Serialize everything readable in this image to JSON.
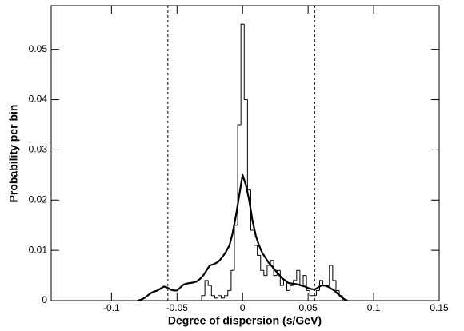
{
  "chart_data": {
    "type": "line",
    "xlabel": "Degree of dispersion (s/GeV)",
    "ylabel": "Probability per bin",
    "x": [
      -0.08,
      -0.0775,
      -0.075,
      -0.0725,
      -0.07,
      -0.0675,
      -0.065,
      -0.0625,
      -0.06,
      -0.0575,
      -0.055,
      -0.0525,
      -0.05,
      -0.0475,
      -0.045,
      -0.0425,
      -0.04,
      -0.0375,
      -0.035,
      -0.0325,
      -0.03,
      -0.0275,
      -0.025,
      -0.0225,
      -0.02,
      -0.0175,
      -0.015,
      -0.0125,
      -0.01,
      -0.0075,
      -0.005,
      -0.0025,
      0,
      0.0025,
      0.005,
      0.0075,
      0.01,
      0.0125,
      0.015,
      0.0175,
      0.02,
      0.0225,
      0.025,
      0.0275,
      0.03,
      0.0325,
      0.035,
      0.0375,
      0.04,
      0.0425,
      0.045,
      0.0475,
      0.05,
      0.0525,
      0.055,
      0.0575,
      0.06,
      0.0625,
      0.065,
      0.0675,
      0.07,
      0.0725,
      0.075,
      0.0775,
      0.08
    ],
    "series": [
      {
        "color": "#000000",
        "width": 1,
        "step": true,
        "values": [
          0,
          0,
          0,
          0,
          0,
          0,
          0,
          0,
          0,
          0,
          0,
          0,
          0,
          0,
          0,
          0,
          0,
          0,
          0,
          0,
          0.001,
          0.004,
          0.003,
          0.001,
          0.0005,
          0.001,
          0.0005,
          0.001,
          0.002,
          0.006,
          0.015,
          0.035,
          0.055,
          0.04,
          0.022,
          0.014,
          0.011,
          0.009,
          0.006,
          0.005,
          0.007,
          0.008,
          0.005,
          0.006,
          0.003,
          0.004,
          0.002,
          0.003,
          0.004,
          0.006,
          0.003,
          0.005,
          0.002,
          0.001,
          0.001,
          0.002,
          0.004,
          0.003,
          0.003,
          0.007,
          0.004,
          0.002,
          0.001,
          0,
          0
        ]
      },
      {
        "color": "#000000",
        "width": 2.2,
        "step": false,
        "values": [
          0,
          0.0002,
          0.0005,
          0.001,
          0.0015,
          0.0018,
          0.002,
          0.0024,
          0.0028,
          0.0026,
          0.0022,
          0.002,
          0.002,
          0.0026,
          0.0032,
          0.0034,
          0.0035,
          0.0036,
          0.0038,
          0.0043,
          0.005,
          0.006,
          0.007,
          0.0072,
          0.0075,
          0.008,
          0.0088,
          0.0098,
          0.011,
          0.0135,
          0.017,
          0.021,
          0.025,
          0.023,
          0.02,
          0.016,
          0.013,
          0.011,
          0.0095,
          0.0085,
          0.0075,
          0.0068,
          0.006,
          0.0052,
          0.0045,
          0.004,
          0.0035,
          0.0034,
          0.0033,
          0.0032,
          0.003,
          0.0028,
          0.0025,
          0.0023,
          0.0022,
          0.0026,
          0.003,
          0.003,
          0.0028,
          0.0024,
          0.002,
          0.0014,
          0.0008,
          0.0003,
          0
        ]
      }
    ],
    "vlines": [
      -0.057,
      0.055
    ],
    "xlim": [
      -0.146,
      0.15
    ],
    "ylim": [
      0,
      0.0587
    ],
    "xticks": [
      -0.1,
      -0.05,
      0,
      0.05,
      0.1,
      0.15
    ],
    "yticks": [
      0,
      0.01,
      0.02,
      0.03,
      0.04,
      0.05
    ],
    "grid": false
  }
}
